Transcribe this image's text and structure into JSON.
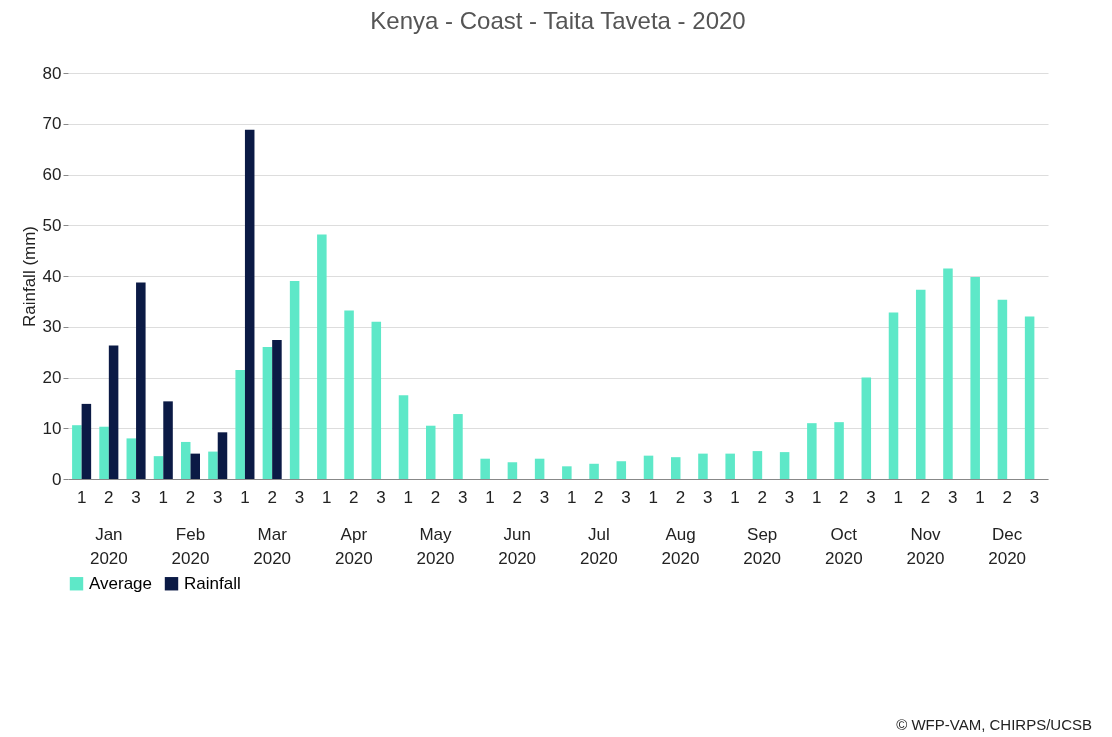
{
  "chart_data": {
    "type": "bar",
    "title": "Kenya - Coast - Taita Taveta - 2020",
    "ylabel": "Rainfall (mm)",
    "categories": [
      "1",
      "2",
      "3",
      "1",
      "2",
      "3",
      "1",
      "2",
      "3",
      "1",
      "2",
      "3",
      "1",
      "2",
      "3",
      "1",
      "2",
      "3",
      "1",
      "2",
      "3",
      "1",
      "2",
      "3",
      "1",
      "2",
      "3",
      "1",
      "2",
      "3",
      "1",
      "2",
      "3",
      "1",
      "2",
      "3"
    ],
    "series": [
      {
        "name": "Average",
        "color": "#5ee8c8",
        "values": [
          10.6,
          10.3,
          8,
          4.5,
          7.3,
          5.4,
          21.5,
          26,
          39,
          48.2,
          33.2,
          31,
          16.5,
          10.5,
          12.8,
          4,
          3.3,
          4,
          2.5,
          3,
          3.5,
          4.6,
          4.3,
          5,
          5,
          5.5,
          5.3,
          11,
          11.2,
          20,
          32.8,
          37.3,
          41.5,
          39.8,
          35.3,
          32
        ]
      },
      {
        "name": "Rainfall",
        "color": "#0b1a45",
        "values": [
          14.8,
          26.3,
          38.7,
          15.3,
          5,
          9.2,
          68.8,
          27.4,
          null,
          null,
          null,
          null,
          null,
          null,
          null,
          null,
          null,
          null,
          null,
          null,
          null,
          null,
          null,
          null,
          null,
          null,
          null,
          null,
          null,
          null,
          null,
          null,
          null,
          null,
          null,
          null
        ]
      }
    ],
    "ylim": [
      0,
      80
    ],
    "yticks": [
      0,
      10,
      20,
      30,
      40,
      50,
      60,
      70,
      80
    ],
    "grid": "y",
    "legend": "bottom",
    "annotations": [
      "Jan 2020",
      "Feb 2020",
      "Mar 2020",
      "Apr 2020",
      "May 2020",
      "Jun 2020",
      "Jul 2020",
      "Aug 2020",
      "Sep 2020",
      "Oct 2020",
      "Nov 2020",
      "Dec 2020",
      "© WFP-VAM, CHIRPS/UCSB"
    ]
  }
}
